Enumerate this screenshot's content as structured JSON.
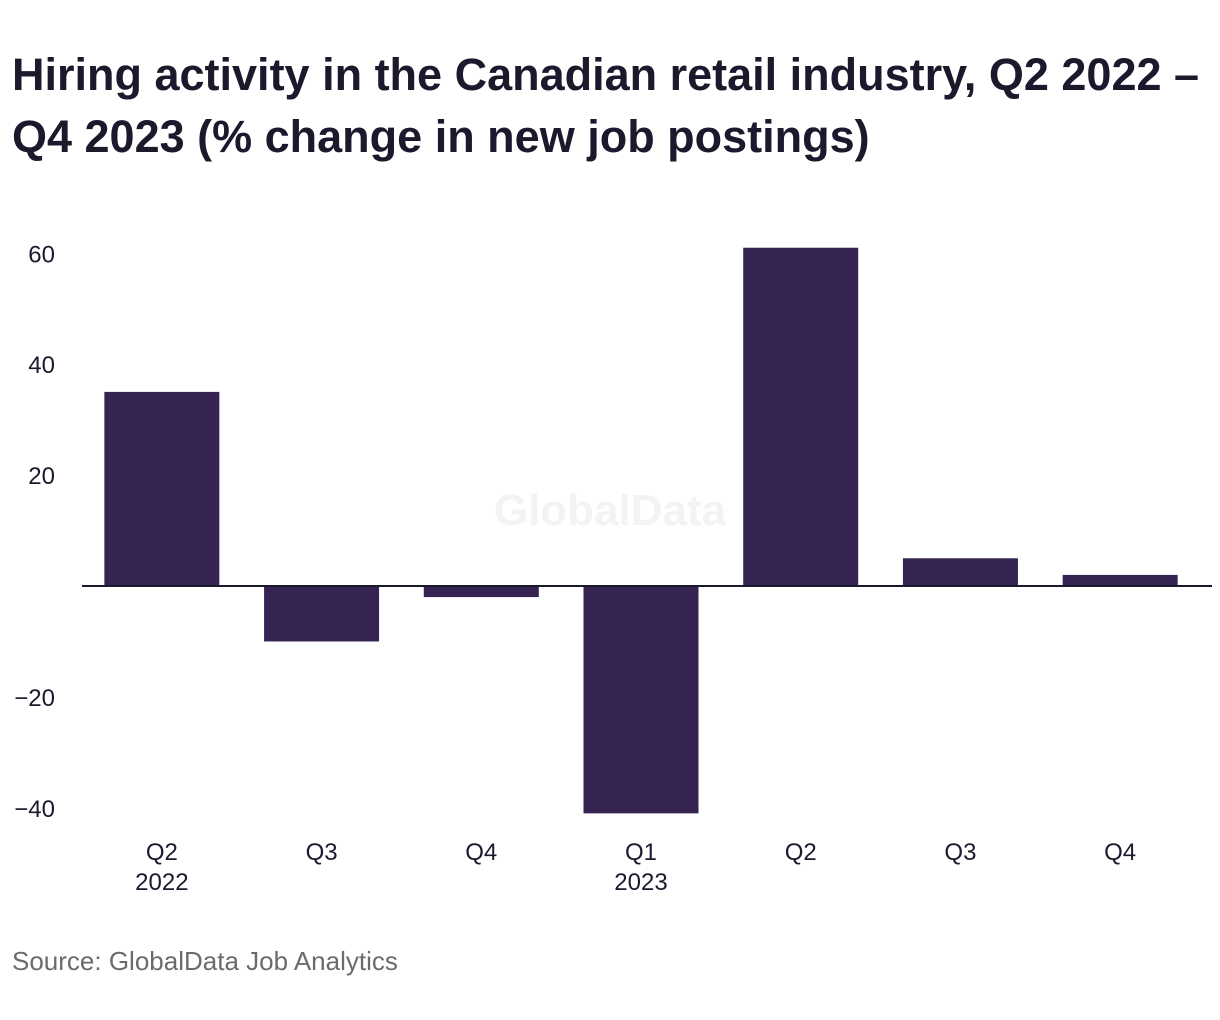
{
  "title": "Hiring activity in the Canadian retail industry, Q2 2022 – Q4 2023 (% change in new job postings)",
  "source": "Source: GlobalData Job Analytics",
  "watermark": "GlobalData",
  "colors": {
    "bar": "#352452",
    "axis": "#1b1a2d",
    "text": "#1c1a2e"
  },
  "chart_data": {
    "type": "bar",
    "categories": [
      "Q2",
      "Q3",
      "Q4",
      "Q1",
      "Q2",
      "Q3",
      "Q4"
    ],
    "category_years": [
      "2022",
      "",
      "",
      "2023",
      "",
      "",
      ""
    ],
    "values": [
      35,
      -10,
      -2,
      -41,
      61,
      5,
      2
    ],
    "ylim": [
      -44,
      66
    ],
    "yticks": [
      60,
      40,
      20,
      -20,
      -40
    ],
    "ytick_labels": [
      "60",
      "40",
      "20",
      "−20",
      "−40"
    ],
    "grid": false,
    "legend": "none"
  }
}
